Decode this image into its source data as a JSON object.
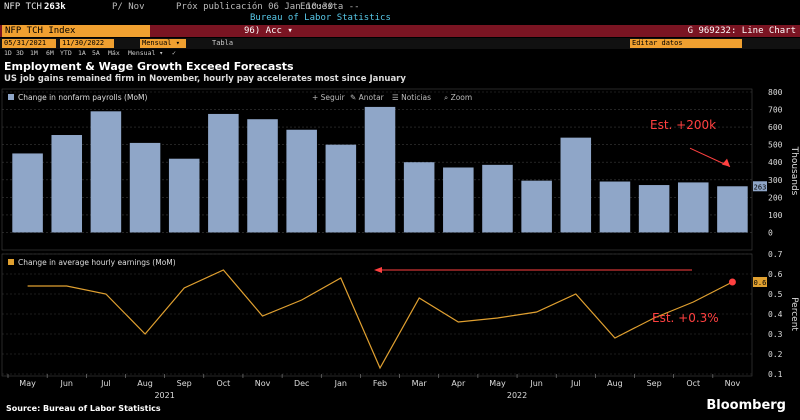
{
  "terminal": {
    "ticker": "NFP TCH",
    "last_value": "263k",
    "period": "P/ Nov",
    "next_release": "Próx publicación 06 Jan 10:30",
    "survey": "Encuesta --",
    "source_name": "Bureau of Labor Statistics",
    "security_name": "NFP TCH Index",
    "mode_label": "96) Acc ▾",
    "chart_label": "G 969232: Line Chart",
    "date_start": "05/31/2021",
    "date_end": "11/30/2022",
    "frequency": "Mensual ▾",
    "table_label": "Tabla",
    "edit_label": "Editar datos",
    "range_buttons": [
      "1D",
      "3D",
      "1M",
      "6M",
      "YTD",
      "1A",
      "5A",
      "Máx",
      "Mensual ▾",
      "✓"
    ],
    "toolbar": [
      "+ Seguir",
      "✎ Anotar",
      "☰ Noticias",
      "⌕ Zoom"
    ]
  },
  "chart_title": "Employment & Wage Growth Exceed Forecasts",
  "chart_subtitle": "US job gains remained firm in November, hourly pay accelerates most since January",
  "footer": {
    "source": "Source: Bureau of Labor Statistics",
    "brand": "Bloomberg"
  },
  "colors": {
    "bar": "#8fa6c8",
    "line": "#e0a030",
    "annotation": "#ff4040",
    "panel_bg": "#000000"
  },
  "chart_data": [
    {
      "type": "bar",
      "legend": "Change in nonfarm payrolls (MoM)",
      "ylabel": "Thousands",
      "ylim": [
        -100,
        800
      ],
      "yticks": [
        0,
        100,
        200,
        300,
        400,
        500,
        600,
        700,
        800
      ],
      "categories": [
        "May",
        "Jun",
        "Jul",
        "Aug",
        "Sep",
        "Oct",
        "Nov",
        "Dec",
        "Jan",
        "Feb",
        "Mar",
        "Apr",
        "May",
        "Jun",
        "Jul",
        "Aug",
        "Sep",
        "Oct",
        "Nov"
      ],
      "year_labels": [
        {
          "label": "2021",
          "at": 3.5
        },
        {
          "label": "2022",
          "at": 12.5
        }
      ],
      "values": [
        450,
        555,
        690,
        510,
        420,
        675,
        645,
        585,
        500,
        715,
        400,
        370,
        385,
        295,
        540,
        290,
        270,
        285,
        263
      ],
      "last_value_label": "263",
      "annotation": "Est. +200k",
      "grid": true
    },
    {
      "type": "line",
      "legend": "Change in average hourly earnings (MoM)",
      "ylabel": "Percent",
      "ylim": [
        0.1,
        0.7
      ],
      "yticks": [
        0.1,
        0.2,
        0.3,
        0.4,
        0.5,
        0.6,
        0.7
      ],
      "values": [
        0.54,
        0.54,
        0.5,
        0.3,
        0.53,
        0.62,
        0.39,
        0.47,
        0.58,
        0.13,
        0.48,
        0.36,
        0.38,
        0.41,
        0.5,
        0.28,
        0.38,
        0.46,
        0.56
      ],
      "last_value_label": "0.6",
      "annotation": "Est. +0.3%",
      "grid": true
    }
  ]
}
